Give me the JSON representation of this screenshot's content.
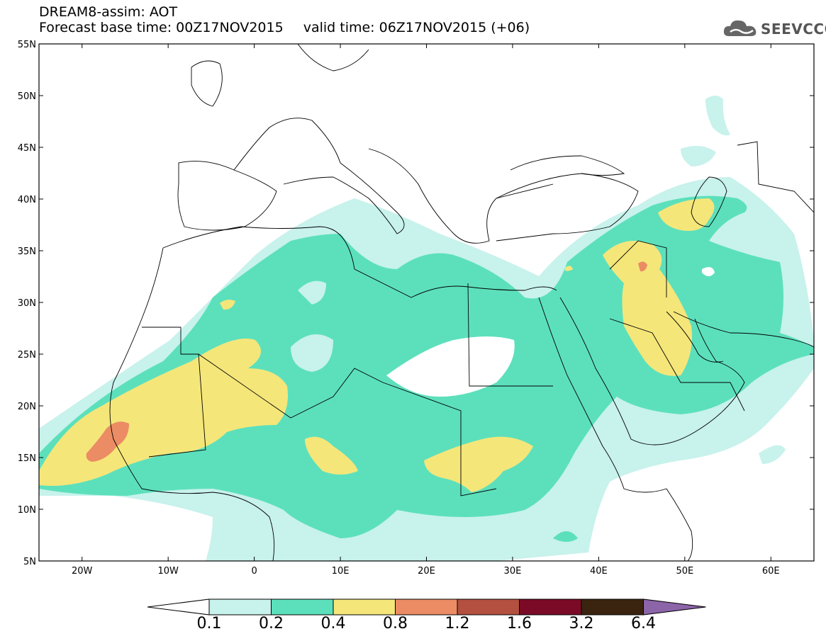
{
  "header": {
    "model_title": "DREAM8-assim: AOT",
    "base_time": "Forecast base time: 00Z17NOV2015",
    "valid_time": "valid time: 06Z17NOV2015 (+06)"
  },
  "logo": {
    "text": "SEEVCCC",
    "icon": "cloud-icon"
  },
  "map": {
    "lon_range": [
      -25,
      65
    ],
    "lat_range": [
      5,
      55
    ],
    "lon_ticks": [
      {
        "value": -20,
        "label": "20W"
      },
      {
        "value": -10,
        "label": "10W"
      },
      {
        "value": 0,
        "label": "0"
      },
      {
        "value": 10,
        "label": "10E"
      },
      {
        "value": 20,
        "label": "20E"
      },
      {
        "value": 30,
        "label": "30E"
      },
      {
        "value": 40,
        "label": "40E"
      },
      {
        "value": 50,
        "label": "50E"
      },
      {
        "value": 60,
        "label": "60E"
      }
    ],
    "lat_ticks": [
      {
        "value": 55,
        "label": "55N"
      },
      {
        "value": 50,
        "label": "50N"
      },
      {
        "value": 45,
        "label": "45N"
      },
      {
        "value": 40,
        "label": "40N"
      },
      {
        "value": 35,
        "label": "35N"
      },
      {
        "value": 30,
        "label": "30N"
      },
      {
        "value": 25,
        "label": "25N"
      },
      {
        "value": 20,
        "label": "20N"
      },
      {
        "value": 15,
        "label": "15N"
      },
      {
        "value": 10,
        "label": "10N"
      },
      {
        "value": 5,
        "label": "5N"
      }
    ]
  },
  "colorbar": {
    "bins": [
      {
        "color": "#c8f2ec"
      },
      {
        "color": "#5ce0bc"
      },
      {
        "color": "#f5e67a"
      },
      {
        "color": "#eb8c64"
      },
      {
        "color": "#b45040"
      },
      {
        "color": "#7a0a26"
      },
      {
        "color": "#3a2410"
      }
    ],
    "over_color": "#8c64a8",
    "under_color": "#ffffff",
    "labels": [
      "0.1",
      "0.2",
      "0.4",
      "0.8",
      "1.2",
      "1.6",
      "3.2",
      "6.4"
    ]
  }
}
